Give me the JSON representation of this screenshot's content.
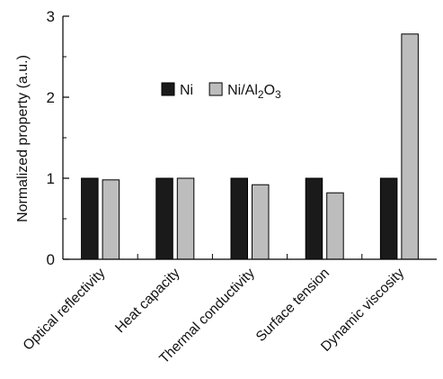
{
  "chart_data": {
    "type": "bar",
    "categories": [
      "Optical reflectivity",
      "Heat capacity",
      "Thermal conductivity",
      "Surface tension",
      "Dynamic viscosity"
    ],
    "series": [
      {
        "name": "Ni",
        "color": "#1a1a1a",
        "values": [
          1.0,
          1.0,
          1.0,
          1.0,
          1.0
        ]
      },
      {
        "name": "Ni/Al2O3",
        "color": "#bdbdbd",
        "values": [
          0.98,
          1.0,
          0.92,
          0.82,
          2.78
        ]
      }
    ],
    "legend": {
      "position": "upper-center",
      "items": [
        {
          "base": "Ni",
          "parts": []
        },
        {
          "base": "Ni/Al",
          "parts": [
            {
              "t": "2",
              "sub": true
            },
            {
              "t": "O",
              "sub": false
            },
            {
              "t": "3",
              "sub": true
            }
          ]
        }
      ]
    },
    "ylabel": "Normalized property (a.u.)",
    "ylim": [
      0,
      3
    ],
    "yticks": [
      "0",
      "1",
      "2",
      "3"
    ],
    "grid": false
  }
}
